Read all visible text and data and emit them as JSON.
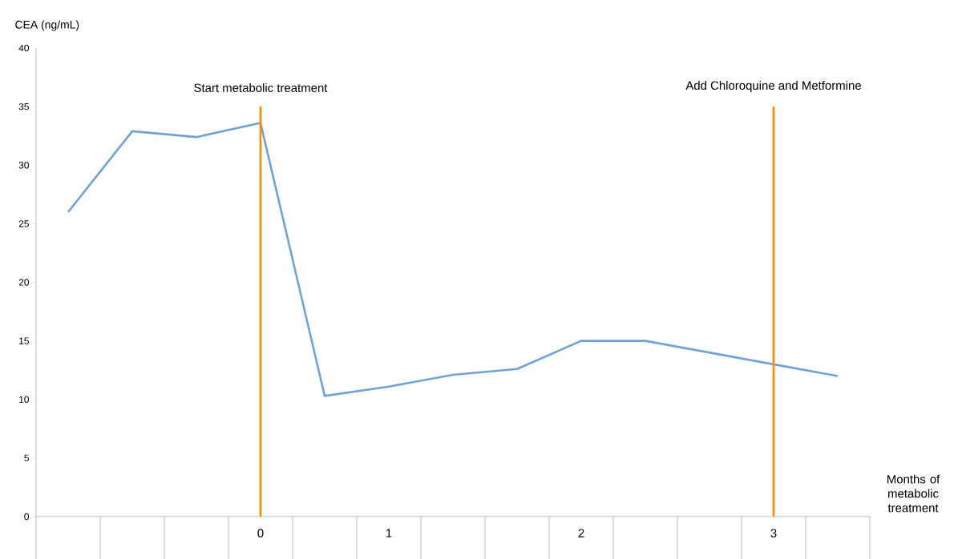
{
  "chart_data": {
    "type": "line",
    "xlabel": "Months of metabolic treatment",
    "ylabel": "CEA (ng/mL)",
    "categories": [
      null,
      null,
      null,
      "0",
      null,
      "1",
      null,
      null,
      "2",
      null,
      null,
      "3",
      null
    ],
    "series": [
      {
        "color": "#6fa3d6",
        "values": [
          26.0,
          32.9,
          32.4,
          33.6,
          10.3,
          11.1,
          12.1,
          12.6,
          15.0,
          15.0,
          14.0,
          13.0,
          12.0
        ]
      }
    ],
    "ylim": [
      0,
      40
    ],
    "yticks": [
      0,
      5,
      10,
      15,
      20,
      25,
      30,
      35,
      40
    ],
    "grid": false,
    "marker": "none",
    "line_style": "solid",
    "ref_lines": [
      {
        "axis": "x",
        "value": "0",
        "label": "Start metabolic treatment",
        "color": "#ff8c00"
      },
      {
        "axis": "x",
        "value": "3",
        "label": "Add Chloroquine and Metformine",
        "color": "#ff8c00"
      }
    ]
  }
}
